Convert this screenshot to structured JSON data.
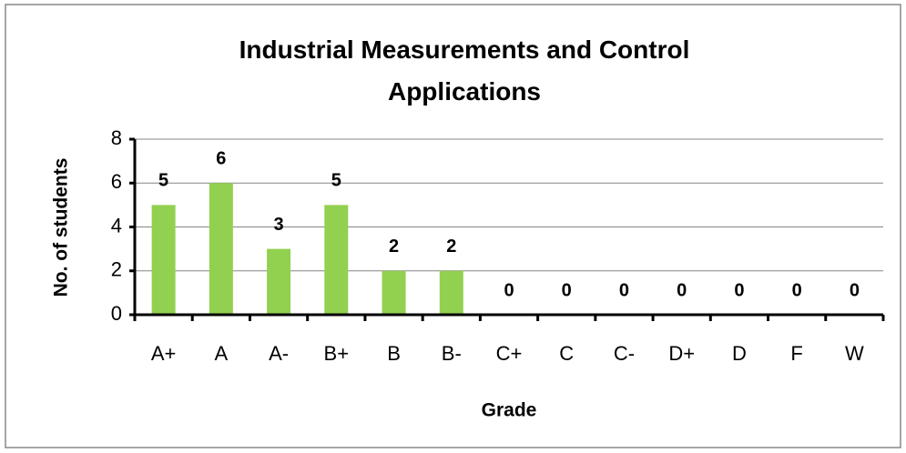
{
  "chart_data": {
    "type": "bar",
    "title": "Industrial Measurements and Control Applications",
    "xlabel": "Grade",
    "ylabel": "No. of students",
    "categories": [
      "A+",
      "A",
      "A-",
      "B+",
      "B",
      "B-",
      "C+",
      "C",
      "C-",
      "D+",
      "D",
      "F",
      "W"
    ],
    "values": [
      5,
      6,
      3,
      5,
      2,
      2,
      0,
      0,
      0,
      0,
      0,
      0,
      0
    ],
    "color": "#92d050",
    "ylim": [
      0,
      8
    ],
    "yticks": [
      0,
      2,
      4,
      6,
      8
    ],
    "grid": true
  }
}
